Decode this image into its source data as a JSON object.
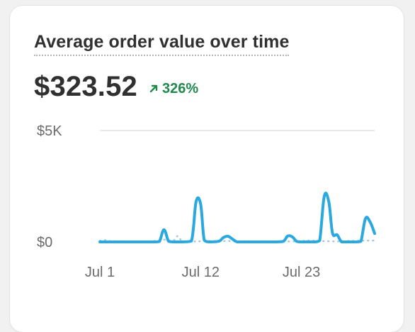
{
  "card": {
    "title": "Average order value over time",
    "value": "$323.52",
    "change": {
      "percent": "326%",
      "direction": "up",
      "color": "#1f8a4c"
    }
  },
  "chart_data": {
    "type": "line",
    "y_ticks": [
      "$5K",
      "$0"
    ],
    "x_ticks": [
      {
        "label": "Jul 1",
        "day": 1
      },
      {
        "label": "Jul 12",
        "day": 12
      },
      {
        "label": "Jul 23",
        "day": 23
      }
    ],
    "ylim": [
      0,
      5000
    ],
    "xlim": [
      1,
      31
    ],
    "grid": true,
    "series": [
      {
        "color": "#2aa8e0",
        "style": "solid",
        "points": [
          [
            1,
            0
          ],
          [
            2,
            0
          ],
          [
            3,
            0
          ],
          [
            4,
            0
          ],
          [
            5,
            0
          ],
          [
            6,
            0
          ],
          [
            7,
            0
          ],
          [
            7.5,
            20
          ],
          [
            8,
            550
          ],
          [
            8.5,
            30
          ],
          [
            9,
            0
          ],
          [
            10,
            0
          ],
          [
            11,
            40
          ],
          [
            11.5,
            1800
          ],
          [
            12,
            1700
          ],
          [
            12.4,
            80
          ],
          [
            13,
            0
          ],
          [
            14,
            30
          ],
          [
            14.5,
            200
          ],
          [
            15,
            250
          ],
          [
            15.5,
            120
          ],
          [
            16,
            0
          ],
          [
            17,
            0
          ],
          [
            18,
            0
          ],
          [
            19,
            0
          ],
          [
            20,
            0
          ],
          [
            21,
            20
          ],
          [
            21.5,
            260
          ],
          [
            22,
            230
          ],
          [
            22.5,
            20
          ],
          [
            23,
            0
          ],
          [
            24,
            0
          ],
          [
            24.5,
            0
          ],
          [
            25,
            60
          ],
          [
            25.5,
            2050
          ],
          [
            26,
            1800
          ],
          [
            26.4,
            400
          ],
          [
            26.9,
            320
          ],
          [
            27.4,
            0
          ],
          [
            28,
            0
          ],
          [
            29,
            0
          ],
          [
            29.5,
            30
          ],
          [
            30,
            1050
          ],
          [
            30.5,
            900
          ],
          [
            31,
            380
          ]
        ]
      },
      {
        "color": "#a8c9dd",
        "style": "dotted",
        "points": [
          [
            1,
            50
          ],
          [
            1.5,
            80
          ],
          [
            2,
            40
          ],
          [
            3,
            30
          ],
          [
            4,
            20
          ],
          [
            5,
            20
          ],
          [
            6,
            20
          ],
          [
            7,
            40
          ],
          [
            8,
            100
          ],
          [
            9,
            60
          ],
          [
            9.5,
            260
          ],
          [
            10,
            40
          ],
          [
            11,
            20
          ],
          [
            12,
            30
          ],
          [
            13,
            40
          ],
          [
            14,
            30
          ],
          [
            15,
            40
          ],
          [
            16,
            20
          ],
          [
            17,
            30
          ],
          [
            18,
            20
          ],
          [
            19,
            30
          ],
          [
            20,
            20
          ],
          [
            21,
            30
          ],
          [
            22,
            20
          ],
          [
            23,
            40
          ],
          [
            24,
            60
          ],
          [
            25,
            40
          ],
          [
            26,
            30
          ],
          [
            27,
            20
          ],
          [
            28,
            40
          ],
          [
            29,
            50
          ],
          [
            30,
            60
          ],
          [
            31,
            60
          ]
        ]
      }
    ]
  }
}
